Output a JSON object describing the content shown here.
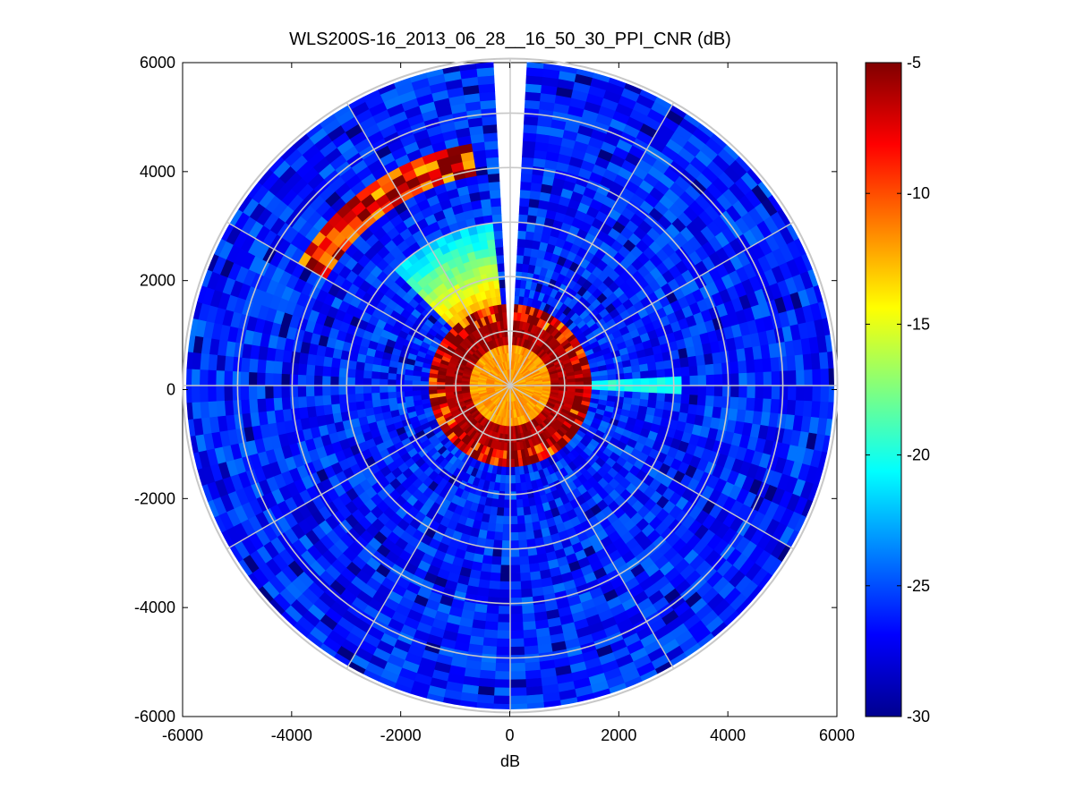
{
  "chart_data": {
    "type": "heatmap",
    "projection": "polar-ppi",
    "title": "WLS200S-16_2013_06_28__16_50_30_PPI_CNR (dB)",
    "xlabel": "dB",
    "ylabel": "",
    "xlim": [
      -6000,
      6000
    ],
    "ylim": [
      -6000,
      6000
    ],
    "x_ticks": [
      -6000,
      -4000,
      -2000,
      0,
      2000,
      4000,
      6000
    ],
    "y_ticks": [
      6000,
      4000,
      2000,
      0,
      -2000,
      -4000,
      -6000
    ],
    "colorbar": {
      "colormap": "jet",
      "range": [
        -30,
        -5
      ],
      "ticks": [
        -5,
        -10,
        -15,
        -20,
        -25,
        -30
      ]
    },
    "max_range_m": 6000,
    "range_rings_m": [
      1000,
      2000,
      3000,
      4000,
      5000,
      6000
    ],
    "azimuth_spokes_deg": [
      0,
      30,
      60,
      90,
      120,
      150,
      180,
      210,
      240,
      270,
      300,
      330
    ],
    "missing_sector_deg": [
      356,
      4
    ],
    "typical_values_db": {
      "near_field_center_0_to_700m": -12,
      "near_field_edge_700_to_1500m": -6,
      "far_field_background": -26,
      "northwest_wedge_700_to_3000m": -17,
      "northwest_arc_near_4000m": -8,
      "east_streak_near_2000m": -20
    }
  }
}
